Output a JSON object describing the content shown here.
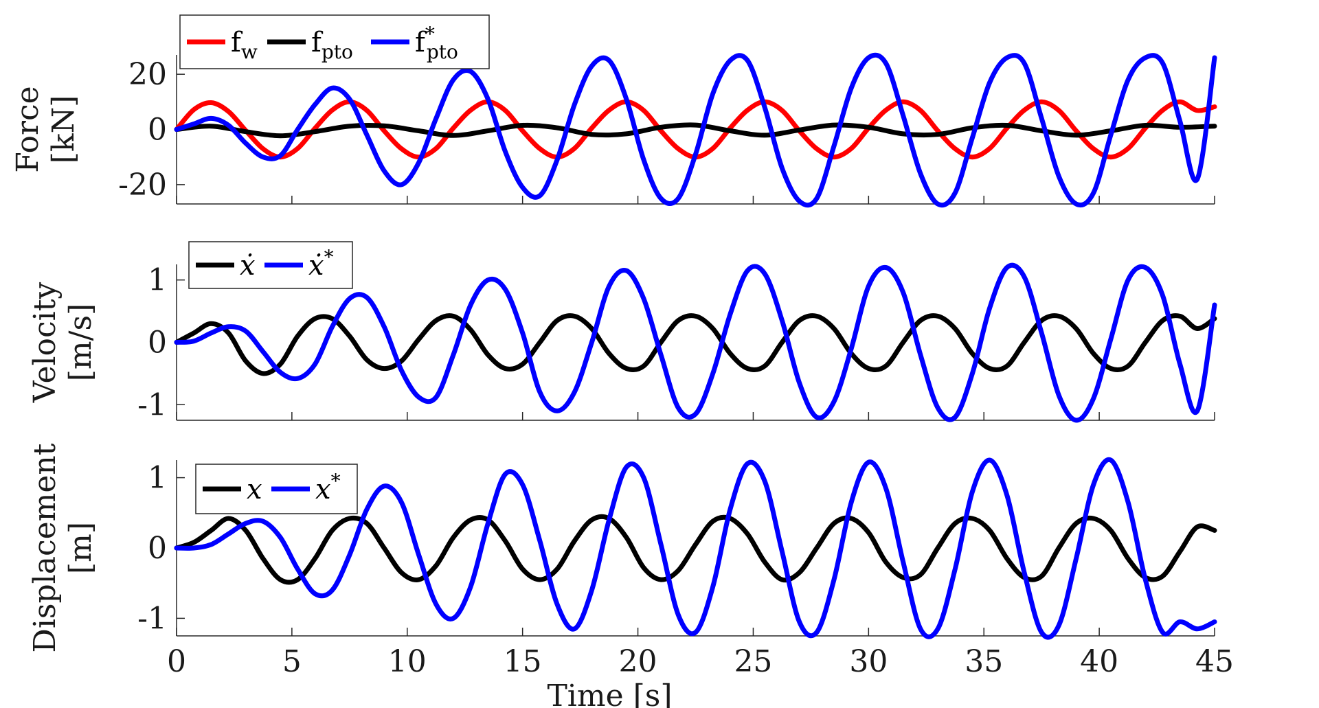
{
  "colors": {
    "red": "#ff0000",
    "black": "#000000",
    "blue": "#0000ff",
    "axis": "#262626"
  },
  "chart_data": [
    {
      "type": "line",
      "ylabel_line1": "Force",
      "ylabel_line2": "[kN]",
      "xlim": [
        0,
        45
      ],
      "ylim": [
        -27,
        27
      ],
      "yticks": [
        -20,
        0,
        20
      ],
      "ytick_labels": [
        "-20",
        "0",
        "20"
      ],
      "xticks": [
        0,
        5,
        10,
        15,
        20,
        25,
        30,
        35,
        40,
        45
      ],
      "legend_placement": "top-left",
      "series": [
        {
          "name": "f_w",
          "legend_base": "f",
          "legend_sub": "w",
          "legend_sup": "",
          "italic": false,
          "color": "#ff0000",
          "x": [
            0,
            0.75,
            1.5,
            2.25,
            3,
            3.75,
            4.5,
            5.25,
            6,
            6.75,
            7.5,
            8.25,
            9,
            9.75,
            10.5,
            11.25,
            12,
            12.75,
            13.5,
            14.25,
            15,
            15.75,
            16.5,
            17.25,
            18,
            18.75,
            19.5,
            20.25,
            21,
            21.75,
            22.5,
            23.25,
            24,
            24.75,
            25.5,
            26.25,
            27,
            27.75,
            28.5,
            29.25,
            30,
            30.75,
            31.5,
            32.25,
            33,
            33.75,
            34.5,
            35.25,
            36,
            36.75,
            37.5,
            38.25,
            39,
            39.75,
            40.5,
            41.25,
            42,
            42.75,
            43.5,
            44.25,
            45
          ],
          "y": [
            0,
            7.2,
            9.7,
            6.5,
            -0.4,
            -7,
            -10,
            -6.9,
            0.4,
            7,
            10,
            6.9,
            -0.5,
            -7,
            -10,
            -6.9,
            0.5,
            7,
            10,
            6.9,
            -0.5,
            -7,
            -10,
            -6.9,
            0.5,
            7,
            10,
            6.9,
            -0.5,
            -7,
            -10,
            -6.9,
            0.5,
            7,
            10,
            6.9,
            -0.5,
            -7,
            -10,
            -6.9,
            0.5,
            7,
            10,
            6.9,
            -0.5,
            -7,
            -10,
            -6.9,
            0.5,
            7,
            10,
            6.9,
            -0.5,
            -7,
            -10,
            -6.9,
            0.5,
            7,
            10,
            6.9,
            8.2
          ]
        },
        {
          "name": "f_pto",
          "legend_base": "f",
          "legend_sub": "pto",
          "legend_sup": "",
          "italic": false,
          "color": "#000000",
          "x": [
            0,
            1.5,
            3,
            4.5,
            6,
            7.5,
            9,
            10.5,
            12,
            13.5,
            15,
            16.5,
            18,
            19.5,
            21,
            22.5,
            24,
            25.5,
            27,
            28.5,
            30,
            31.5,
            33,
            34.5,
            36,
            37.5,
            39,
            40.5,
            42,
            43.5,
            45
          ],
          "y": [
            0,
            1.2,
            -0.8,
            -2.3,
            -0.8,
            1.2,
            1.3,
            -0.5,
            -2.2,
            -0.5,
            1.5,
            0.6,
            -1.8,
            -1.6,
            0.8,
            1.6,
            -0.5,
            -2.1,
            -0.2,
            1.6,
            0.8,
            -1.6,
            -1.8,
            0.6,
            1.5,
            -0.5,
            -2.1,
            -0.5,
            1.5,
            0.8,
            1.2
          ]
        },
        {
          "name": "f*_pto",
          "legend_base": "f",
          "legend_sub": "pto",
          "legend_sup": "*",
          "italic": false,
          "color": "#0000ff",
          "x": [
            0,
            0.75,
            1.5,
            2.25,
            3,
            3.75,
            4.5,
            5.25,
            6,
            6.75,
            7.5,
            8.25,
            9,
            9.75,
            10.5,
            11.25,
            12,
            12.75,
            13.5,
            14.25,
            15,
            15.75,
            16.5,
            17.25,
            18,
            18.75,
            19.5,
            20.25,
            21,
            21.75,
            22.5,
            23.25,
            24,
            24.75,
            25.5,
            26.25,
            27,
            27.75,
            28.5,
            29.25,
            30,
            30.75,
            31.5,
            32.25,
            33,
            33.75,
            34.5,
            35.25,
            36,
            36.75,
            37.5,
            38.25,
            39,
            39.75,
            40.5,
            41.25,
            42,
            42.75,
            43.5,
            44.25,
            45
          ],
          "y": [
            0,
            2,
            4,
            1.5,
            -5,
            -10,
            -9.5,
            0,
            9,
            15,
            11,
            -2,
            -15,
            -20,
            -12,
            4,
            18,
            21,
            11,
            -8,
            -21,
            -24,
            -11,
            9,
            23,
            25,
            11,
            -11,
            -25,
            -25,
            -9,
            13,
            25,
            25,
            8,
            -14,
            -26,
            -25,
            -6,
            15,
            26,
            24,
            5,
            -16,
            -27,
            -23,
            -3,
            17,
            26,
            24,
            4,
            -17,
            -27,
            -23,
            -2,
            18,
            26,
            24,
            3,
            -18,
            26
          ]
        },
        {
          "x": [],
          "y": []
        }
      ]
    },
    {
      "type": "line",
      "ylabel_line1": "Velocity",
      "ylabel_line2": "[m/s]",
      "xlim": [
        0,
        45
      ],
      "ylim": [
        -1.25,
        1.25
      ],
      "yticks": [
        -1,
        0,
        1
      ],
      "ytick_labels": [
        "-1",
        "0",
        "1"
      ],
      "xticks": [
        0,
        5,
        10,
        15,
        20,
        25,
        30,
        35,
        40,
        45
      ],
      "legend_placement": "top-left",
      "series": [
        {
          "name": "ẋ",
          "legend_base": "ẋ",
          "legend_sub": "",
          "legend_sup": "",
          "italic": true,
          "color": "#000000",
          "x": [
            0,
            0.75,
            1.5,
            2.25,
            3,
            3.75,
            4.5,
            5.25,
            6,
            6.75,
            7.5,
            8.25,
            9,
            9.75,
            10.5,
            11.25,
            12,
            12.75,
            13.5,
            14.25,
            15,
            15.75,
            16.5,
            17.25,
            18,
            18.75,
            19.5,
            20.25,
            21,
            21.75,
            22.5,
            23.25,
            24,
            24.75,
            25.5,
            26.25,
            27,
            27.75,
            28.5,
            29.25,
            30,
            30.75,
            31.5,
            32.25,
            33,
            33.75,
            34.5,
            35.25,
            36,
            36.75,
            37.5,
            38.25,
            39,
            39.75,
            40.5,
            41.25,
            42,
            42.75,
            43.5,
            44.25,
            45
          ],
          "y": [
            0,
            0.15,
            0.3,
            0.15,
            -0.3,
            -0.5,
            -0.35,
            0.1,
            0.38,
            0.38,
            0.1,
            -0.28,
            -0.42,
            -0.3,
            0.05,
            0.35,
            0.42,
            0.2,
            -0.2,
            -0.42,
            -0.35,
            0,
            0.35,
            0.42,
            0.22,
            -0.18,
            -0.42,
            -0.38,
            0,
            0.35,
            0.42,
            0.22,
            -0.18,
            -0.42,
            -0.38,
            0,
            0.35,
            0.42,
            0.22,
            -0.18,
            -0.42,
            -0.38,
            0,
            0.35,
            0.42,
            0.22,
            -0.18,
            -0.42,
            -0.38,
            0,
            0.35,
            0.42,
            0.22,
            -0.18,
            -0.42,
            -0.38,
            0,
            0.35,
            0.42,
            0.22,
            0.38
          ]
        },
        {
          "name": "ẋ*",
          "legend_base": "ẋ",
          "legend_sub": "",
          "legend_sup": "*",
          "italic": true,
          "color": "#0000ff",
          "x": [
            0,
            0.75,
            1.5,
            2.25,
            3,
            3.75,
            4.5,
            5.25,
            6,
            6.75,
            7.5,
            8.25,
            9,
            9.75,
            10.5,
            11.25,
            12,
            12.75,
            13.5,
            14.25,
            15,
            15.75,
            16.5,
            17.25,
            18,
            18.75,
            19.5,
            20.25,
            21,
            21.75,
            22.5,
            23.25,
            24,
            24.75,
            25.5,
            26.25,
            27,
            27.75,
            28.5,
            29.25,
            30,
            30.75,
            31.5,
            32.25,
            33,
            33.75,
            34.5,
            35.25,
            36,
            36.75,
            37.5,
            38.25,
            39,
            39.75,
            40.5,
            41.25,
            42,
            42.75,
            43.5,
            44.25,
            45
          ],
          "y": [
            0,
            0.02,
            0.15,
            0.25,
            0.18,
            -0.15,
            -0.48,
            -0.58,
            -0.35,
            0.25,
            0.7,
            0.72,
            0.25,
            -0.45,
            -0.88,
            -0.88,
            -0.2,
            0.6,
            1,
            0.85,
            0.15,
            -0.8,
            -1.1,
            -0.8,
            0,
            0.9,
            1.15,
            0.7,
            -0.2,
            -1.05,
            -1.15,
            -0.5,
            0.45,
            1.15,
            1.1,
            0.35,
            -0.65,
            -1.2,
            -0.95,
            -0.1,
            0.9,
            1.2,
            0.8,
            -0.2,
            -1.05,
            -1.2,
            -0.5,
            0.55,
            1.2,
            1.05,
            0.15,
            -0.85,
            -1.25,
            -0.9,
            0.05,
            1,
            1.2,
            0.75,
            -0.35,
            -1.1,
            0.6
          ]
        },
        {
          "x": [],
          "y": []
        }
      ]
    },
    {
      "type": "line",
      "ylabel_line1": "Displacement",
      "ylabel_line2": "[m]",
      "xlabel": "Time [s]",
      "xlim": [
        0,
        45
      ],
      "ylim": [
        -1.25,
        1.25
      ],
      "yticks": [
        -1,
        0,
        1
      ],
      "ytick_labels": [
        "-1",
        "0",
        "1"
      ],
      "xticks": [
        0,
        5,
        10,
        15,
        20,
        25,
        30,
        35,
        40,
        45
      ],
      "xtick_labels": [
        "0",
        "5",
        "10",
        "15",
        "20",
        "25",
        "30",
        "35",
        "40",
        "45"
      ],
      "legend_placement": "top-left",
      "series": [
        {
          "name": "x",
          "legend_base": "x",
          "legend_sub": "",
          "legend_sup": "",
          "italic": true,
          "color": "#000000",
          "x": [
            0,
            0.75,
            1.5,
            2.25,
            3,
            3.75,
            4.5,
            5.25,
            6,
            6.75,
            7.5,
            8.25,
            9,
            9.75,
            10.5,
            11.25,
            12,
            12.75,
            13.5,
            14.25,
            15,
            15.75,
            16.5,
            17.25,
            18,
            18.75,
            19.5,
            20.25,
            21,
            21.75,
            22.5,
            23.25,
            24,
            24.75,
            25.5,
            26.25,
            27,
            27.75,
            28.5,
            29.25,
            30,
            30.75,
            31.5,
            32.25,
            33,
            33.75,
            34.5,
            35.25,
            36,
            36.75,
            37.5,
            38.25,
            39,
            39.75,
            40.5,
            41.25,
            42,
            42.75,
            43.5,
            44.25,
            45
          ],
          "y": [
            0,
            0.08,
            0.25,
            0.42,
            0.25,
            -0.15,
            -0.45,
            -0.45,
            -0.15,
            0.25,
            0.42,
            0.35,
            0,
            -0.35,
            -0.45,
            -0.25,
            0.15,
            0.4,
            0.4,
            0.1,
            -0.3,
            -0.45,
            -0.3,
            0.1,
            0.4,
            0.42,
            0.15,
            -0.28,
            -0.45,
            -0.32,
            0.05,
            0.38,
            0.42,
            0.2,
            -0.2,
            -0.45,
            -0.35,
            0,
            0.35,
            0.42,
            0.22,
            -0.2,
            -0.42,
            -0.38,
            0,
            0.35,
            0.42,
            0.25,
            -0.15,
            -0.42,
            -0.4,
            0,
            0.35,
            0.42,
            0.25,
            -0.15,
            -0.42,
            -0.4,
            -0.05,
            0.3,
            0.25
          ]
        },
        {
          "name": "x*",
          "legend_base": "x",
          "legend_sub": "",
          "legend_sup": "*",
          "italic": true,
          "color": "#0000ff",
          "x": [
            0,
            0.75,
            1.5,
            2.25,
            3,
            3.75,
            4.5,
            5.25,
            6,
            6.75,
            7.5,
            8.25,
            9,
            9.75,
            10.5,
            11.25,
            12,
            12.75,
            13.5,
            14.25,
            15,
            15.75,
            16.5,
            17.25,
            18,
            18.75,
            19.5,
            20.25,
            21,
            21.75,
            22.5,
            23.25,
            24,
            24.75,
            25.5,
            26.25,
            27,
            27.75,
            28.5,
            29.25,
            30,
            30.75,
            31.5,
            32.25,
            33,
            33.75,
            34.5,
            35.25,
            36,
            36.75,
            37.5,
            38.25,
            39,
            39.75,
            40.5,
            41.25,
            42,
            42.75,
            43.5,
            44.25,
            45
          ],
          "y": [
            0,
            0,
            0.05,
            0.2,
            0.35,
            0.38,
            0.15,
            -0.3,
            -0.65,
            -0.6,
            -0.1,
            0.55,
            0.88,
            0.65,
            -0.1,
            -0.8,
            -1,
            -0.55,
            0.35,
            1.05,
            0.9,
            0.1,
            -0.8,
            -1.15,
            -0.6,
            0.4,
            1.15,
            1,
            0.05,
            -0.95,
            -1.2,
            -0.55,
            0.55,
            1.2,
            0.95,
            -0.05,
            -1.05,
            -1.2,
            -0.45,
            0.65,
            1.22,
            0.85,
            -0.2,
            -1.15,
            -1.15,
            -0.3,
            0.8,
            1.25,
            0.75,
            -0.35,
            -1.2,
            -1.1,
            -0.15,
            0.9,
            1.25,
            0.65,
            -0.45,
            -1.2,
            -1.05,
            -1.15,
            -1.05
          ]
        },
        {
          "x": [],
          "y": []
        }
      ]
    }
  ]
}
